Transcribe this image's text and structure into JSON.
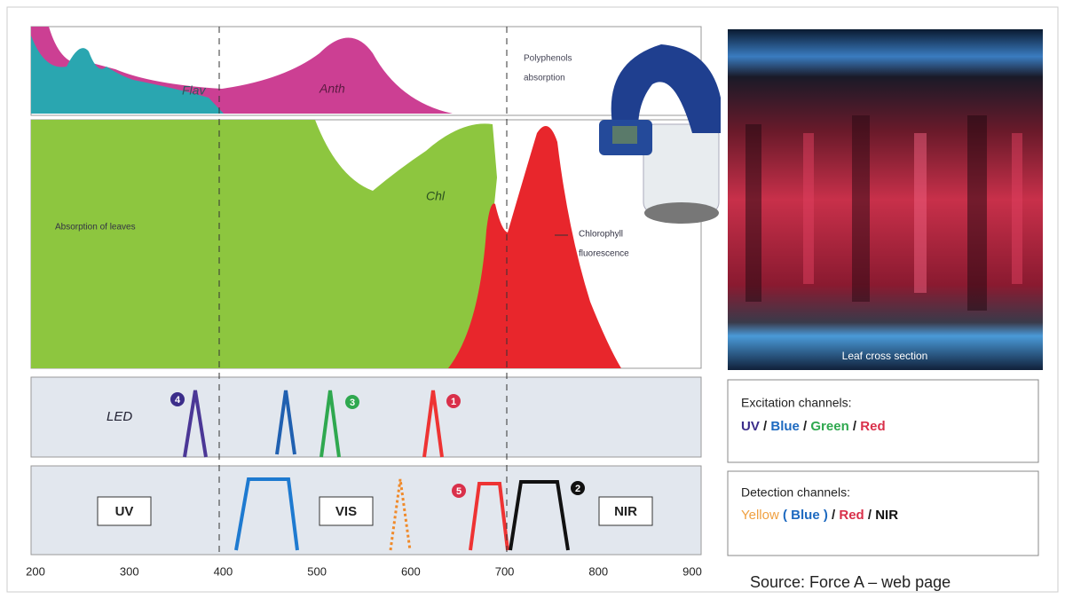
{
  "absorption_panel": {
    "flav": "Flav",
    "anth": "Anth",
    "note": [
      "Polyphenols",
      "absorption"
    ]
  },
  "leaf_panel": {
    "absorption": "Absorption of leaves",
    "chl": "Chl",
    "fluorescence": [
      "Chlorophyll",
      "fluorescence"
    ]
  },
  "led_panel": {
    "label": "LED",
    "markers": [
      "4",
      "3",
      "1"
    ]
  },
  "detection_panel": {
    "bands": [
      "UV",
      "VIS",
      "NIR"
    ],
    "markers": [
      "5",
      "2"
    ]
  },
  "wavelength_axis": {
    "ticks": [
      200,
      300,
      400,
      500,
      600,
      700,
      800,
      900
    ]
  },
  "image": {
    "caption": "Leaf cross section"
  },
  "excitation_box": {
    "title": "Excitation channels:",
    "channels": [
      "UV",
      "Blue",
      "Green",
      "Red"
    ],
    "separator": "/"
  },
  "detection_box": {
    "title": "Detection channels:",
    "yellow": "Yellow",
    "open": "(",
    "blue": "Blue",
    "close": ")",
    "red": "Red",
    "nir": "NIR",
    "separator": "/"
  },
  "source": "Source: Force A – web page"
}
